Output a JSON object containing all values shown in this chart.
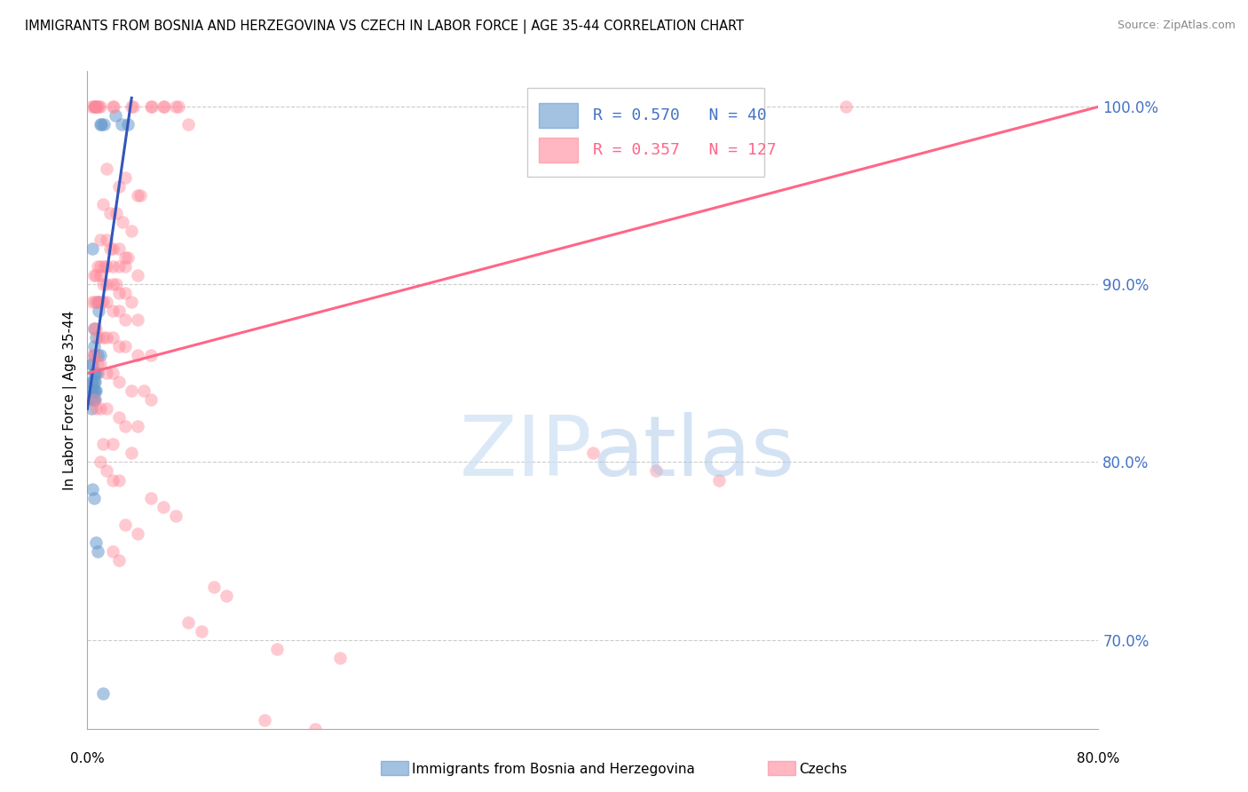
{
  "title": "IMMIGRANTS FROM BOSNIA AND HERZEGOVINA VS CZECH IN LABOR FORCE | AGE 35-44 CORRELATION CHART",
  "source": "Source: ZipAtlas.com",
  "ylabel": "In Labor Force | Age 35-44",
  "xlim": [
    0.0,
    80.0
  ],
  "ylim": [
    65.0,
    102.0
  ],
  "yticks": [
    70.0,
    80.0,
    90.0,
    100.0
  ],
  "right_ytick_color": "#4472c4",
  "legend_blue_R": "R = 0.570",
  "legend_blue_N": "N = 40",
  "legend_pink_R": "R = 0.357",
  "legend_pink_N": "N = 127",
  "blue_color": "#6699cc",
  "pink_color": "#ff8899",
  "blue_line_color": "#3355bb",
  "pink_line_color": "#ff6688",
  "blue_scatter": [
    [
      0.5,
      86.0
    ],
    [
      0.6,
      100.0
    ],
    [
      1.0,
      99.0
    ],
    [
      1.1,
      99.0
    ],
    [
      1.3,
      99.0
    ],
    [
      2.2,
      99.5
    ],
    [
      2.7,
      99.0
    ],
    [
      3.2,
      99.0
    ],
    [
      0.4,
      92.0
    ],
    [
      0.8,
      89.0
    ],
    [
      0.9,
      88.5
    ],
    [
      0.5,
      87.5
    ],
    [
      0.7,
      87.0
    ],
    [
      0.5,
      86.5
    ],
    [
      0.8,
      86.0
    ],
    [
      1.0,
      86.0
    ],
    [
      0.3,
      85.5
    ],
    [
      0.4,
      85.5
    ],
    [
      0.5,
      85.0
    ],
    [
      0.6,
      85.0
    ],
    [
      0.7,
      85.0
    ],
    [
      0.8,
      85.0
    ],
    [
      0.3,
      84.5
    ],
    [
      0.4,
      84.5
    ],
    [
      0.5,
      84.5
    ],
    [
      0.6,
      84.5
    ],
    [
      0.3,
      84.0
    ],
    [
      0.4,
      84.0
    ],
    [
      0.5,
      84.0
    ],
    [
      0.6,
      84.0
    ],
    [
      0.7,
      84.0
    ],
    [
      0.4,
      83.5
    ],
    [
      0.5,
      83.5
    ],
    [
      0.6,
      83.5
    ],
    [
      0.3,
      83.0
    ],
    [
      0.4,
      78.5
    ],
    [
      0.5,
      78.0
    ],
    [
      0.7,
      75.5
    ],
    [
      0.8,
      75.0
    ],
    [
      1.2,
      67.0
    ]
  ],
  "pink_scatter": [
    [
      0.3,
      100.0
    ],
    [
      0.5,
      100.0
    ],
    [
      0.6,
      100.0
    ],
    [
      0.7,
      100.0
    ],
    [
      0.8,
      100.0
    ],
    [
      0.9,
      100.0
    ],
    [
      1.0,
      100.0
    ],
    [
      2.0,
      100.0
    ],
    [
      2.1,
      100.0
    ],
    [
      3.5,
      100.0
    ],
    [
      3.6,
      100.0
    ],
    [
      5.0,
      100.0
    ],
    [
      5.1,
      100.0
    ],
    [
      6.0,
      100.0
    ],
    [
      6.1,
      100.0
    ],
    [
      7.0,
      100.0
    ],
    [
      7.2,
      100.0
    ],
    [
      8.0,
      99.0
    ],
    [
      60.0,
      100.0
    ],
    [
      1.5,
      96.5
    ],
    [
      3.0,
      96.0
    ],
    [
      2.5,
      95.5
    ],
    [
      4.0,
      95.0
    ],
    [
      4.2,
      95.0
    ],
    [
      1.2,
      94.5
    ],
    [
      1.8,
      94.0
    ],
    [
      2.3,
      94.0
    ],
    [
      2.8,
      93.5
    ],
    [
      3.5,
      93.0
    ],
    [
      1.0,
      92.5
    ],
    [
      1.5,
      92.5
    ],
    [
      1.8,
      92.0
    ],
    [
      2.0,
      92.0
    ],
    [
      2.5,
      92.0
    ],
    [
      3.0,
      91.5
    ],
    [
      3.2,
      91.5
    ],
    [
      0.8,
      91.0
    ],
    [
      1.0,
      91.0
    ],
    [
      1.3,
      91.0
    ],
    [
      1.5,
      91.0
    ],
    [
      2.0,
      91.0
    ],
    [
      2.5,
      91.0
    ],
    [
      3.0,
      91.0
    ],
    [
      4.0,
      90.5
    ],
    [
      0.5,
      90.5
    ],
    [
      0.7,
      90.5
    ],
    [
      1.0,
      90.5
    ],
    [
      1.2,
      90.0
    ],
    [
      1.5,
      90.0
    ],
    [
      2.0,
      90.0
    ],
    [
      2.3,
      90.0
    ],
    [
      2.5,
      89.5
    ],
    [
      3.0,
      89.5
    ],
    [
      3.5,
      89.0
    ],
    [
      0.4,
      89.0
    ],
    [
      0.6,
      89.0
    ],
    [
      0.8,
      89.0
    ],
    [
      1.0,
      89.0
    ],
    [
      1.2,
      89.0
    ],
    [
      1.5,
      89.0
    ],
    [
      2.0,
      88.5
    ],
    [
      2.5,
      88.5
    ],
    [
      3.0,
      88.0
    ],
    [
      4.0,
      88.0
    ],
    [
      0.5,
      87.5
    ],
    [
      0.7,
      87.5
    ],
    [
      0.9,
      87.0
    ],
    [
      1.2,
      87.0
    ],
    [
      1.5,
      87.0
    ],
    [
      2.0,
      87.0
    ],
    [
      2.5,
      86.5
    ],
    [
      3.0,
      86.5
    ],
    [
      4.0,
      86.0
    ],
    [
      5.0,
      86.0
    ],
    [
      0.4,
      86.0
    ],
    [
      0.6,
      86.0
    ],
    [
      0.8,
      85.5
    ],
    [
      1.0,
      85.5
    ],
    [
      1.5,
      85.0
    ],
    [
      2.0,
      85.0
    ],
    [
      2.5,
      84.5
    ],
    [
      3.5,
      84.0
    ],
    [
      4.5,
      84.0
    ],
    [
      5.0,
      83.5
    ],
    [
      0.5,
      83.5
    ],
    [
      0.7,
      83.0
    ],
    [
      1.0,
      83.0
    ],
    [
      1.5,
      83.0
    ],
    [
      2.5,
      82.5
    ],
    [
      3.0,
      82.0
    ],
    [
      4.0,
      82.0
    ],
    [
      1.2,
      81.0
    ],
    [
      2.0,
      81.0
    ],
    [
      3.5,
      80.5
    ],
    [
      1.0,
      80.0
    ],
    [
      1.5,
      79.5
    ],
    [
      2.5,
      79.0
    ],
    [
      2.0,
      79.0
    ],
    [
      40.0,
      80.5
    ],
    [
      45.0,
      79.5
    ],
    [
      50.0,
      79.0
    ],
    [
      5.0,
      78.0
    ],
    [
      6.0,
      77.5
    ],
    [
      7.0,
      77.0
    ],
    [
      3.0,
      76.5
    ],
    [
      4.0,
      76.0
    ],
    [
      2.0,
      75.0
    ],
    [
      2.5,
      74.5
    ],
    [
      10.0,
      73.0
    ],
    [
      11.0,
      72.5
    ],
    [
      8.0,
      71.0
    ],
    [
      9.0,
      70.5
    ],
    [
      15.0,
      69.5
    ],
    [
      20.0,
      69.0
    ],
    [
      14.0,
      65.5
    ],
    [
      18.0,
      65.0
    ]
  ],
  "blue_line_x": [
    0.0,
    3.5
  ],
  "blue_line_y": [
    83.0,
    100.5
  ],
  "pink_line_x": [
    0.0,
    80.0
  ],
  "pink_line_y": [
    85.0,
    100.0
  ],
  "bottom_legend_blue_label": "Immigrants from Bosnia and Herzegovina",
  "bottom_legend_pink_label": "Czechs"
}
